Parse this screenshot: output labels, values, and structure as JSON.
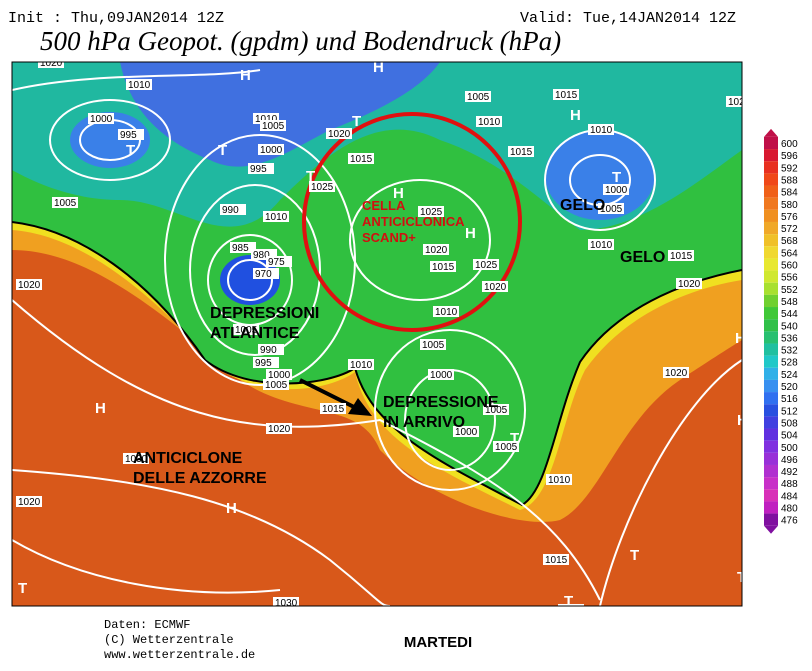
{
  "header": {
    "init": "Init : Thu,09JAN2014 12Z",
    "valid": "Valid: Tue,14JAN2014 12Z",
    "title": "500 hPa Geopot. (gpdm) und Bodendruck (hPa)"
  },
  "annotations": [
    {
      "lines": [
        "DEPRESSIONI",
        "ATLANTICE"
      ]
    },
    {
      "lines": [
        "DEPRESSIONE",
        "IN ARRIVO"
      ]
    },
    {
      "lines": [
        "ANTICICLONE",
        "DELLE AZZORRE"
      ]
    },
    {
      "lines": [
        "GELO"
      ]
    },
    {
      "lines": [
        "GELO"
      ]
    },
    {
      "lines": [
        "CELLA",
        "ANTICICLONICA",
        "SCAND+"
      ]
    }
  ],
  "isobar_labels": [
    "1020",
    "1010",
    "1000",
    "995",
    "1005",
    "1010",
    "1005",
    "1000",
    "995",
    "990",
    "985",
    "980",
    "975",
    "970",
    "1020",
    "1015",
    "1025",
    "1010",
    "1025",
    "1020",
    "1015",
    "1025",
    "1020",
    "1010",
    "1015",
    "1010",
    "1005",
    "1015",
    "1010",
    "1000",
    "1005",
    "1010",
    "1015",
    "1020",
    "1020",
    "1020",
    "1005",
    "990",
    "995",
    "1000",
    "1005",
    "1010",
    "1015",
    "1020",
    "1005",
    "1000",
    "1005",
    "1000",
    "1005",
    "1010",
    "1015",
    "1015",
    "1030",
    "1030",
    "1020",
    "1020"
  ],
  "pressure_centers": [
    "H",
    "H",
    "T",
    "T",
    "T",
    "H",
    "T",
    "H",
    "H",
    "T",
    "H",
    "H",
    "T",
    "T",
    "T",
    "T",
    "H",
    "H",
    "T"
  ],
  "legend": {
    "values": [
      600,
      596,
      592,
      588,
      584,
      580,
      576,
      572,
      568,
      564,
      560,
      556,
      552,
      548,
      544,
      540,
      536,
      532,
      528,
      524,
      520,
      516,
      512,
      508,
      504,
      500,
      496,
      492,
      488,
      484,
      480,
      476
    ],
    "colors": [
      "#c01048",
      "#d81830",
      "#e83020",
      "#f04818",
      "#f06018",
      "#f07820",
      "#f09020",
      "#f0a828",
      "#f0c028",
      "#f0d830",
      "#e8e830",
      "#d0e830",
      "#a8e030",
      "#70d030",
      "#40c838",
      "#30c048",
      "#28c070",
      "#20c0a0",
      "#20c8c8",
      "#30b0e8",
      "#3890f0",
      "#3070f0",
      "#2850e0",
      "#4040e0",
      "#6030e0",
      "#8030e0",
      "#9830d8",
      "#b030d0",
      "#c830c8",
      "#d830b8",
      "#c020c0",
      "#8010a0"
    ]
  },
  "footer": {
    "source": "Daten: ECMWF",
    "copyright": "(C) Wetterzentrale",
    "url": "www.wetterzentrale.de",
    "day": "MARTEDI"
  }
}
